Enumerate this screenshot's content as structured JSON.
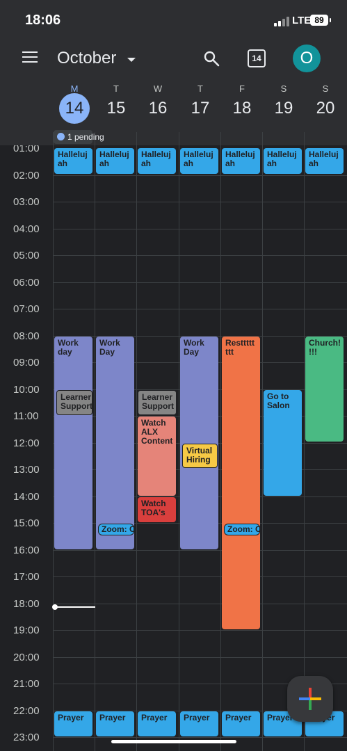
{
  "status_bar": {
    "time": "18:06",
    "network": "LTE",
    "battery": "89"
  },
  "header": {
    "month": "October",
    "today_icon_text": "14",
    "avatar_letter": "O"
  },
  "week_days": [
    {
      "letter": "M",
      "num": "14"
    },
    {
      "letter": "T",
      "num": "15"
    },
    {
      "letter": "W",
      "num": "16"
    },
    {
      "letter": "T",
      "num": "17"
    },
    {
      "letter": "F",
      "num": "18"
    },
    {
      "letter": "S",
      "num": "19"
    },
    {
      "letter": "S",
      "num": "20"
    }
  ],
  "pending_chip": "1 pending",
  "hours": [
    "01:00",
    "02:00",
    "03:00",
    "04:00",
    "05:00",
    "06:00",
    "07:00",
    "08:00",
    "09:00",
    "10:00",
    "11:00",
    "12:00",
    "13:00",
    "14:00",
    "15:00",
    "16:00",
    "17:00",
    "18:00",
    "19:00",
    "20:00",
    "21:00",
    "22:00",
    "23:00"
  ],
  "events": {
    "hallelujah": "Halleluj ah",
    "prayer": "Prayer",
    "mon_work": "Work day",
    "tue_work": "Work Day",
    "thu_work": "Work Day",
    "learner_support": "Learner Support",
    "watch_alx": "Watch ALX Content",
    "watch_toas": "Watch TOA's",
    "virtual_hiring": "Virtual Hiring",
    "zoom": "Zoom: C",
    "rest": "Resttttt ttt",
    "salon": "Go to Salon",
    "church": "Church! !!!"
  },
  "colors": {
    "background": "#202124",
    "header": "#2d2e31",
    "today_accent": "#8ab4f8",
    "event_blue": "#34a7e8",
    "event_purple": "#7d86c9",
    "event_orange": "#f07347",
    "event_green": "#4aba83",
    "event_pink": "#e58479",
    "event_red": "#d93f3d",
    "event_yellow": "#f6c945",
    "event_gray": "#858585",
    "avatar": "#12939a"
  },
  "icons": [
    "menu-icon",
    "caret-down-icon",
    "search-icon",
    "today-calendar-icon",
    "signal-icon",
    "battery-icon",
    "plus-icon"
  ]
}
